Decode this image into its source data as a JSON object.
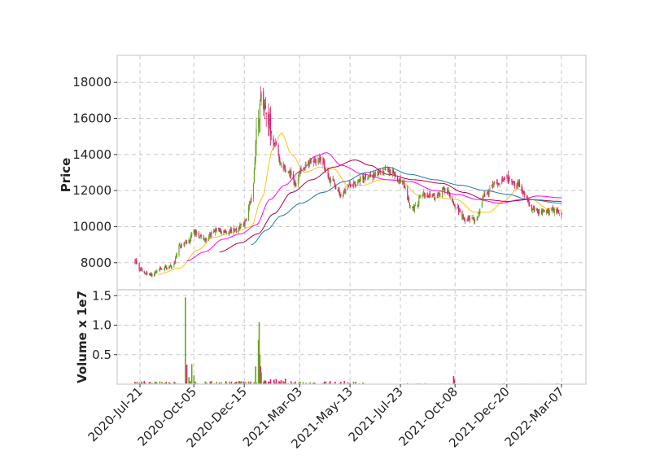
{
  "chart_data": {
    "type": "candlestick",
    "colors": {
      "up": "#6aa121",
      "down": "#d6246e",
      "ma_short": "#f5c518",
      "ma_mid": "#ff00ff",
      "ma_long1": "#b0004a",
      "ma_long2": "#1f77b4"
    },
    "date_ticks": [
      "2020-Jul-21",
      "2020-Oct-05",
      "2020-Dec-15",
      "2021-Mar-03",
      "2021-May-13",
      "2021-Jul-23",
      "2021-Oct-08",
      "2021-Dec-20",
      "2022-Mar-07"
    ],
    "price_panel": {
      "ylabel": "Price",
      "ylim": [
        6500,
        19500
      ],
      "yticks": [
        "8000",
        "10000",
        "12000",
        "14000",
        "16000",
        "18000"
      ]
    },
    "volume_panel": {
      "ylabel": "Volume x 1e7",
      "ylim": [
        0,
        1.6
      ],
      "yticks": [
        "0.5",
        "1.0",
        "1.5"
      ]
    },
    "price_anchors": [
      [
        "2020-Jul-14",
        8100
      ],
      [
        "2020-Jul-21",
        7600
      ],
      [
        "2020-Aug-05",
        7300
      ],
      [
        "2020-Aug-20",
        7700
      ],
      [
        "2020-Sep-05",
        7800
      ],
      [
        "2020-Sep-15",
        8900
      ],
      [
        "2020-Sep-25",
        9100
      ],
      [
        "2020-Oct-05",
        9700
      ],
      [
        "2020-Oct-20",
        9300
      ],
      [
        "2020-Nov-05",
        9800
      ],
      [
        "2020-Nov-20",
        9700
      ],
      [
        "2020-Dec-05",
        9900
      ],
      [
        "2020-Dec-15",
        10200
      ],
      [
        "2020-Dec-25",
        11500
      ],
      [
        "2021-Jan-03",
        15500
      ],
      [
        "2021-Jan-08",
        17500
      ],
      [
        "2021-Jan-15",
        16500
      ],
      [
        "2021-Jan-25",
        14800
      ],
      [
        "2021-Feb-05",
        13500
      ],
      [
        "2021-Feb-15",
        13000
      ],
      [
        "2021-Feb-25",
        12400
      ],
      [
        "2021-Mar-05",
        13100
      ],
      [
        "2021-Mar-20",
        13600
      ],
      [
        "2021-Apr-01",
        13800
      ],
      [
        "2021-Apr-15",
        12600
      ],
      [
        "2021-May-01",
        11800
      ],
      [
        "2021-May-13",
        12300
      ],
      [
        "2021-Jun-01",
        12700
      ],
      [
        "2021-Jun-20",
        12900
      ],
      [
        "2021-Jul-05",
        13200
      ],
      [
        "2021-Jul-23",
        12600
      ],
      [
        "2021-Aug-10",
        11000
      ],
      [
        "2021-Aug-25",
        11800
      ],
      [
        "2021-Sep-10",
        11600
      ],
      [
        "2021-Sep-25",
        12100
      ],
      [
        "2021-Oct-08",
        11200
      ],
      [
        "2021-Oct-20",
        10400
      ],
      [
        "2021-Nov-05",
        10400
      ],
      [
        "2021-Nov-20",
        11800
      ],
      [
        "2021-Dec-05",
        12400
      ],
      [
        "2021-Dec-20",
        12700
      ],
      [
        "2022-Jan-05",
        12300
      ],
      [
        "2022-Jan-15",
        11800
      ],
      [
        "2022-Jan-25",
        10900
      ],
      [
        "2022-Feb-10",
        10800
      ],
      [
        "2022-Feb-25",
        10900
      ],
      [
        "2022-Mar-07",
        10700
      ]
    ],
    "ma_short_anchors": [
      [
        "2020-Aug-15",
        7350
      ],
      [
        "2020-Sep-15",
        7700
      ],
      [
        "2020-Oct-10",
        8700
      ],
      [
        "2020-Nov-01",
        9400
      ],
      [
        "2020-Dec-01",
        9700
      ],
      [
        "2020-Dec-25",
        10000
      ],
      [
        "2021-Jan-08",
        11500
      ],
      [
        "2021-Jan-25",
        14400
      ],
      [
        "2021-Feb-05",
        15200
      ],
      [
        "2021-Feb-20",
        14000
      ],
      [
        "2021-Mar-10",
        13000
      ],
      [
        "2021-Apr-01",
        13300
      ],
      [
        "2021-Apr-20",
        13200
      ],
      [
        "2021-May-10",
        12300
      ],
      [
        "2021-Jun-01",
        12300
      ],
      [
        "2021-Jun-25",
        12600
      ],
      [
        "2021-Jul-20",
        12600
      ],
      [
        "2021-Aug-20",
        11700
      ],
      [
        "2021-Sep-15",
        11600
      ],
      [
        "2021-Oct-10",
        11500
      ],
      [
        "2021-Nov-05",
        10800
      ],
      [
        "2021-Nov-25",
        10800
      ],
      [
        "2021-Dec-15",
        11400
      ],
      [
        "2022-Jan-05",
        12100
      ],
      [
        "2022-Jan-25",
        11500
      ],
      [
        "2022-Feb-15",
        11000
      ],
      [
        "2022-Mar-07",
        10900
      ]
    ],
    "ma_mid_anchors": [
      [
        "2020-Sep-25",
        8100
      ],
      [
        "2020-Oct-20",
        8600
      ],
      [
        "2020-Nov-15",
        9300
      ],
      [
        "2020-Dec-10",
        9600
      ],
      [
        "2021-Jan-01",
        10100
      ],
      [
        "2021-Jan-20",
        11500
      ],
      [
        "2021-Feb-10",
        12300
      ],
      [
        "2021-Mar-05",
        13100
      ],
      [
        "2021-Mar-25",
        13900
      ],
      [
        "2021-Apr-10",
        14100
      ],
      [
        "2021-May-01",
        13400
      ],
      [
        "2021-Jun-01",
        12900
      ],
      [
        "2021-Jul-05",
        12600
      ],
      [
        "2021-Aug-05",
        12500
      ],
      [
        "2021-Sep-10",
        12000
      ],
      [
        "2021-Oct-10",
        11800
      ],
      [
        "2021-Nov-10",
        11500
      ],
      [
        "2021-Dec-10",
        11300
      ],
      [
        "2022-Jan-10",
        11500
      ],
      [
        "2022-Feb-01",
        11700
      ],
      [
        "2022-Mar-07",
        11600
      ]
    ],
    "ma_long1_anchors": [
      [
        "2020-Nov-10",
        8600
      ],
      [
        "2020-Dec-10",
        9100
      ],
      [
        "2021-Jan-03",
        9600
      ],
      [
        "2021-Jan-25",
        10700
      ],
      [
        "2021-Feb-20",
        11900
      ],
      [
        "2021-Mar-20",
        12600
      ],
      [
        "2021-Apr-20",
        13300
      ],
      [
        "2021-May-20",
        13700
      ],
      [
        "2021-Jun-10",
        13400
      ],
      [
        "2021-Jul-05",
        12900
      ],
      [
        "2021-Aug-10",
        12600
      ],
      [
        "2021-Sep-20",
        12400
      ],
      [
        "2021-Oct-20",
        11900
      ],
      [
        "2021-Nov-20",
        11500
      ],
      [
        "2021-Dec-20",
        11400
      ],
      [
        "2022-Jan-20",
        11500
      ],
      [
        "2022-Mar-07",
        11400
      ]
    ],
    "ma_long2_anchors": [
      [
        "2020-Dec-25",
        9000
      ],
      [
        "2021-Jan-15",
        9800
      ],
      [
        "2021-Feb-05",
        10600
      ],
      [
        "2021-Mar-05",
        11300
      ],
      [
        "2021-Apr-05",
        11900
      ],
      [
        "2021-May-05",
        12500
      ],
      [
        "2021-Jun-05",
        13000
      ],
      [
        "2021-Jul-05",
        13300
      ],
      [
        "2021-Aug-05",
        12900
      ],
      [
        "2021-Sep-10",
        12600
      ],
      [
        "2021-Oct-15",
        12300
      ],
      [
        "2021-Nov-20",
        12000
      ],
      [
        "2021-Dec-20",
        11800
      ],
      [
        "2022-Jan-20",
        11500
      ],
      [
        "2022-Mar-07",
        11300
      ]
    ],
    "volume_spikes": [
      [
        "2020-Sep-23",
        1.47
      ],
      [
        "2020-Sep-25",
        0.33
      ],
      [
        "2020-Oct-02",
        0.34
      ],
      [
        "2020-Oct-05",
        0.15
      ],
      [
        "2020-Sep-28",
        0.12
      ],
      [
        "2021-Jan-04",
        0.75
      ],
      [
        "2021-Jan-05",
        1.05
      ],
      [
        "2021-Jan-06",
        0.5
      ],
      [
        "2021-Jan-07",
        0.3
      ],
      [
        "2021-Jan-08",
        0.2
      ],
      [
        "2020-Dec-31",
        0.3
      ],
      [
        "2021-Oct-06",
        0.14
      ],
      [
        "2021-Oct-07",
        0.08
      ]
    ]
  }
}
